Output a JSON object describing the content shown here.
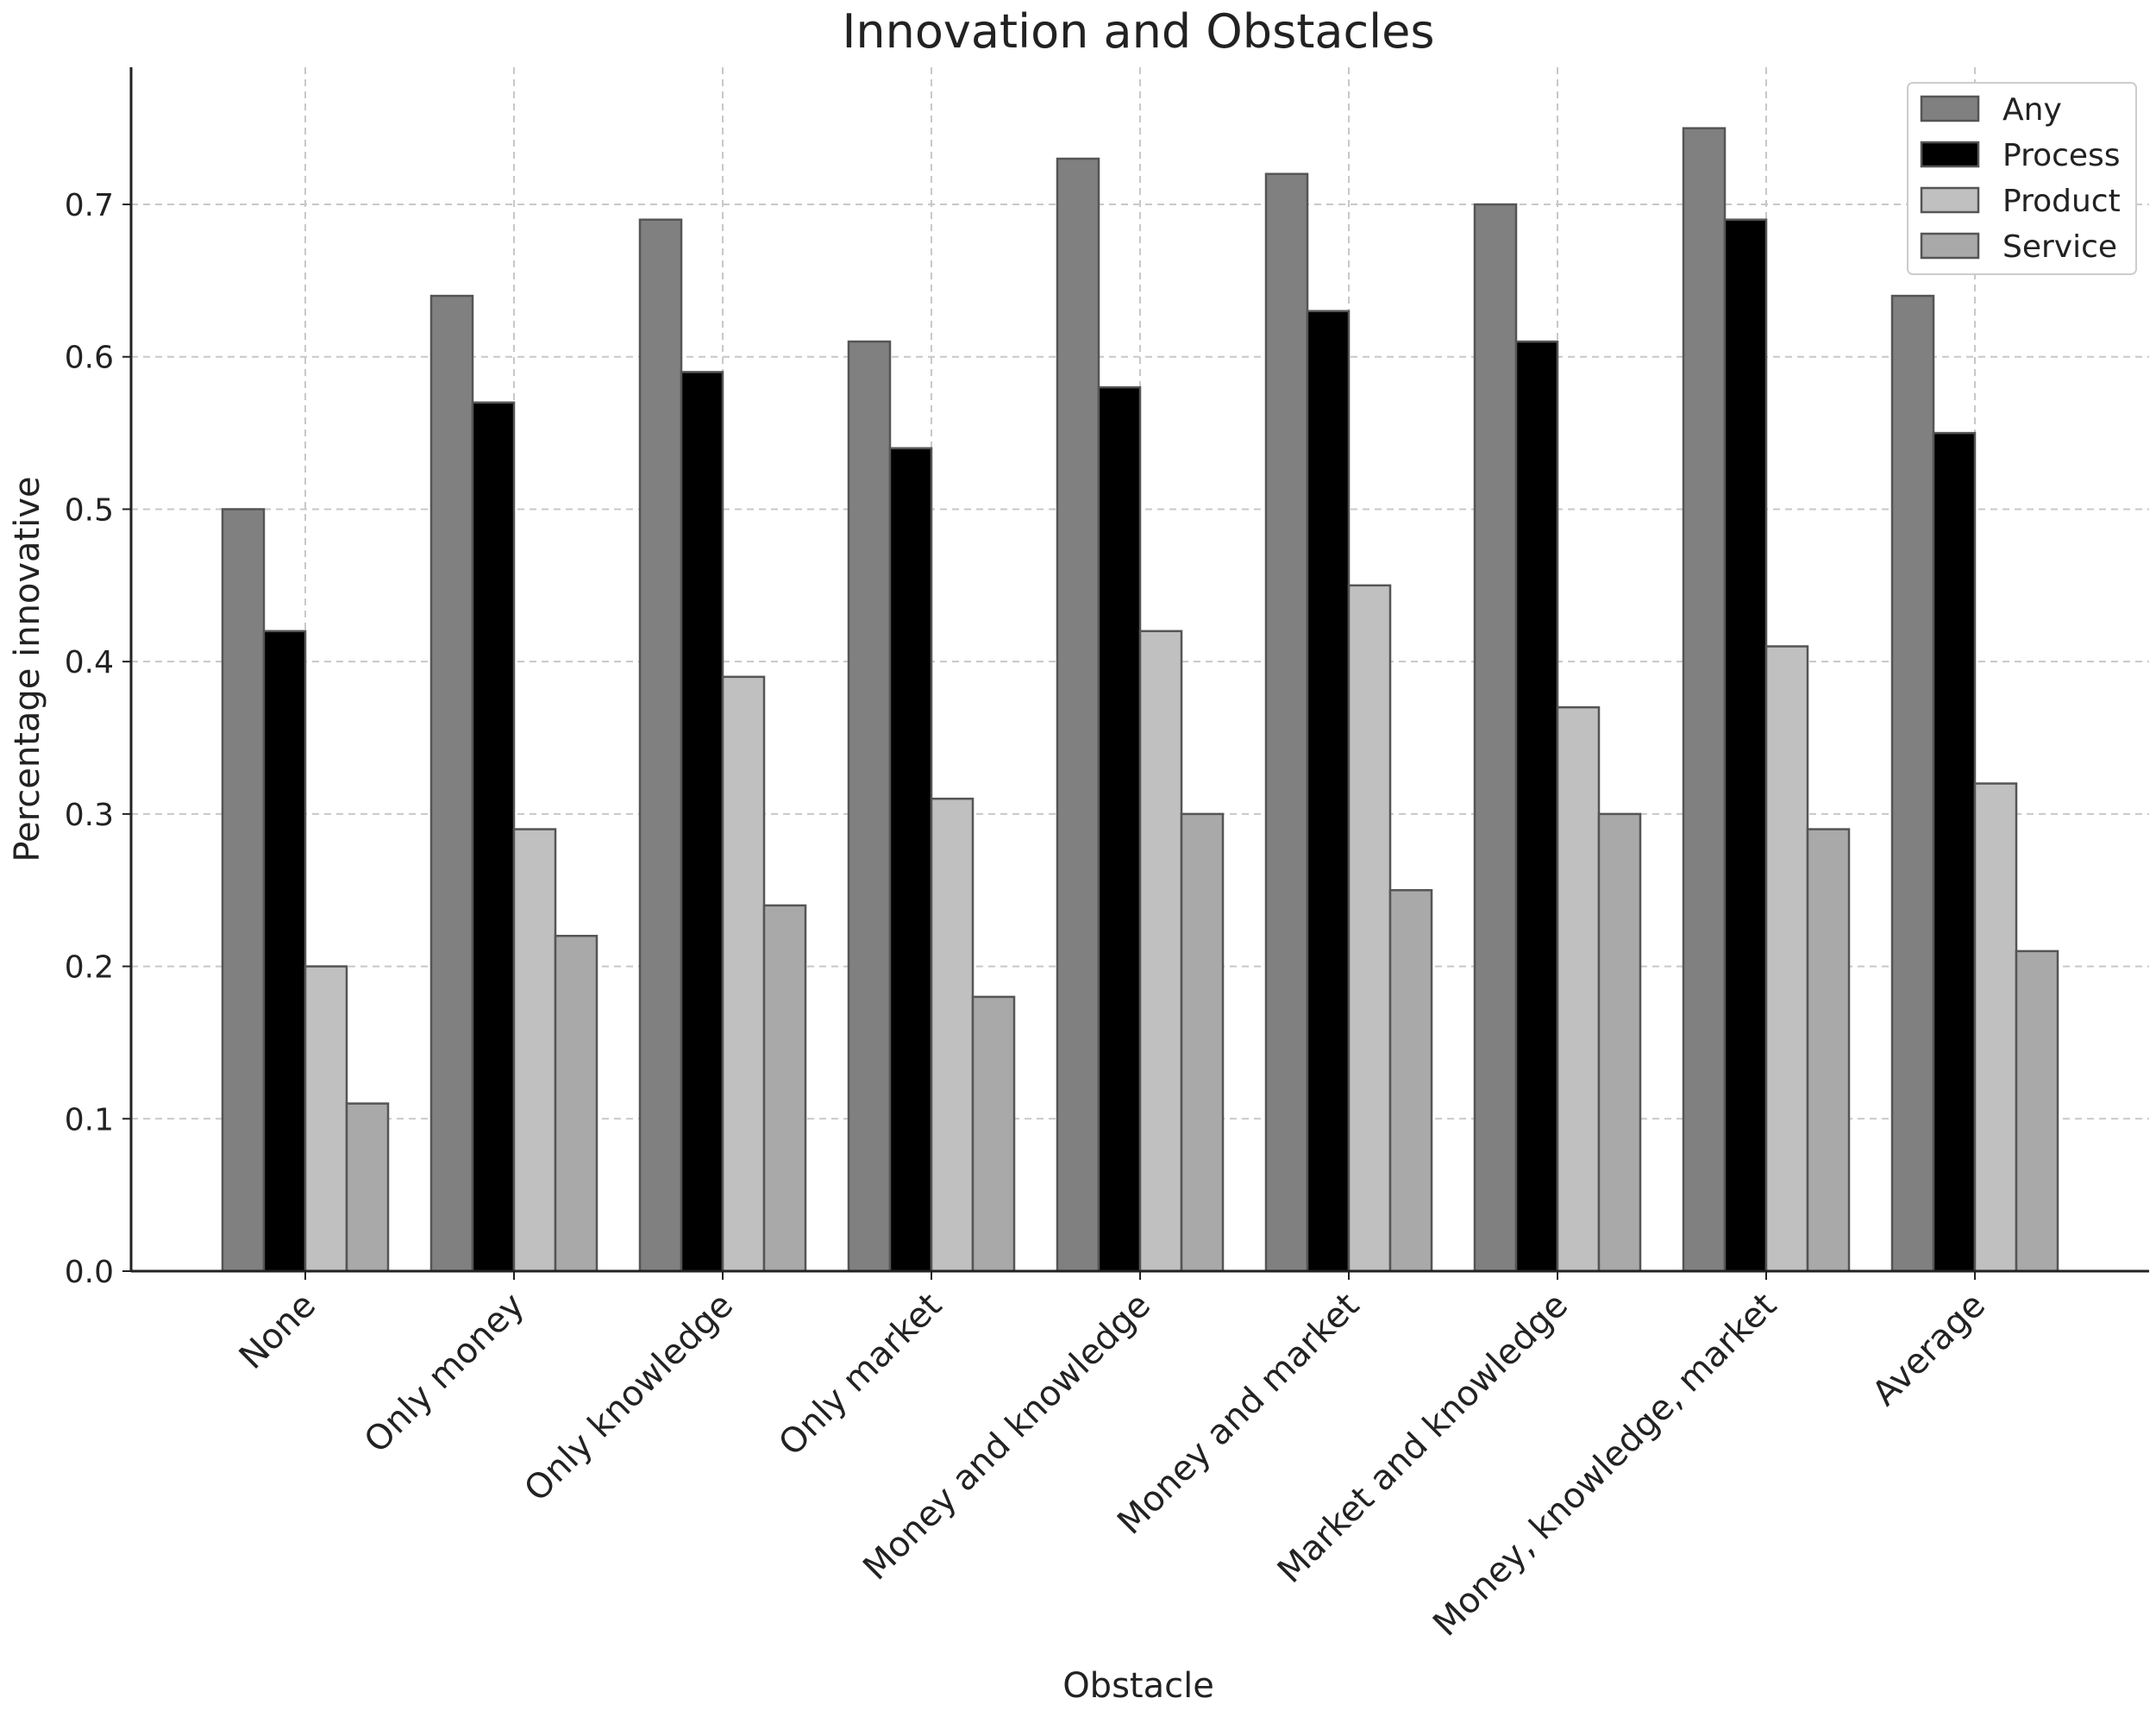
{
  "chart_data": {
    "type": "bar",
    "title": "Innovation and Obstacles",
    "xlabel": "Obstacle",
    "ylabel": "Percentage innovative",
    "ylim": [
      0,
      0.79
    ],
    "yticks": [
      "0.0",
      "0.1",
      "0.2",
      "0.3",
      "0.4",
      "0.5",
      "0.6",
      "0.7"
    ],
    "ytick_values": [
      0,
      0.1,
      0.2,
      0.3,
      0.4,
      0.5,
      0.6,
      0.7
    ],
    "grid": true,
    "legend_position": "top-right",
    "categories": [
      "None",
      "Only money",
      "Only knowledge",
      "Only market",
      "Money and knowledge",
      "Money and market",
      "Market and knowledge",
      "Money, knowledge, market",
      "Average"
    ],
    "series": [
      {
        "name": "Any",
        "color": "#808080",
        "values": [
          0.5,
          0.64,
          0.69,
          0.61,
          0.73,
          0.72,
          0.7,
          0.75,
          0.64
        ]
      },
      {
        "name": "Process",
        "color": "#000000",
        "values": [
          0.42,
          0.57,
          0.59,
          0.54,
          0.58,
          0.63,
          0.61,
          0.69,
          0.55
        ]
      },
      {
        "name": "Product",
        "color": "#c0c0c0",
        "values": [
          0.2,
          0.29,
          0.39,
          0.31,
          0.42,
          0.45,
          0.37,
          0.41,
          0.32
        ]
      },
      {
        "name": "Service",
        "color": "#a9a9a9",
        "values": [
          0.11,
          0.22,
          0.24,
          0.18,
          0.3,
          0.25,
          0.3,
          0.29,
          0.21
        ]
      }
    ]
  }
}
